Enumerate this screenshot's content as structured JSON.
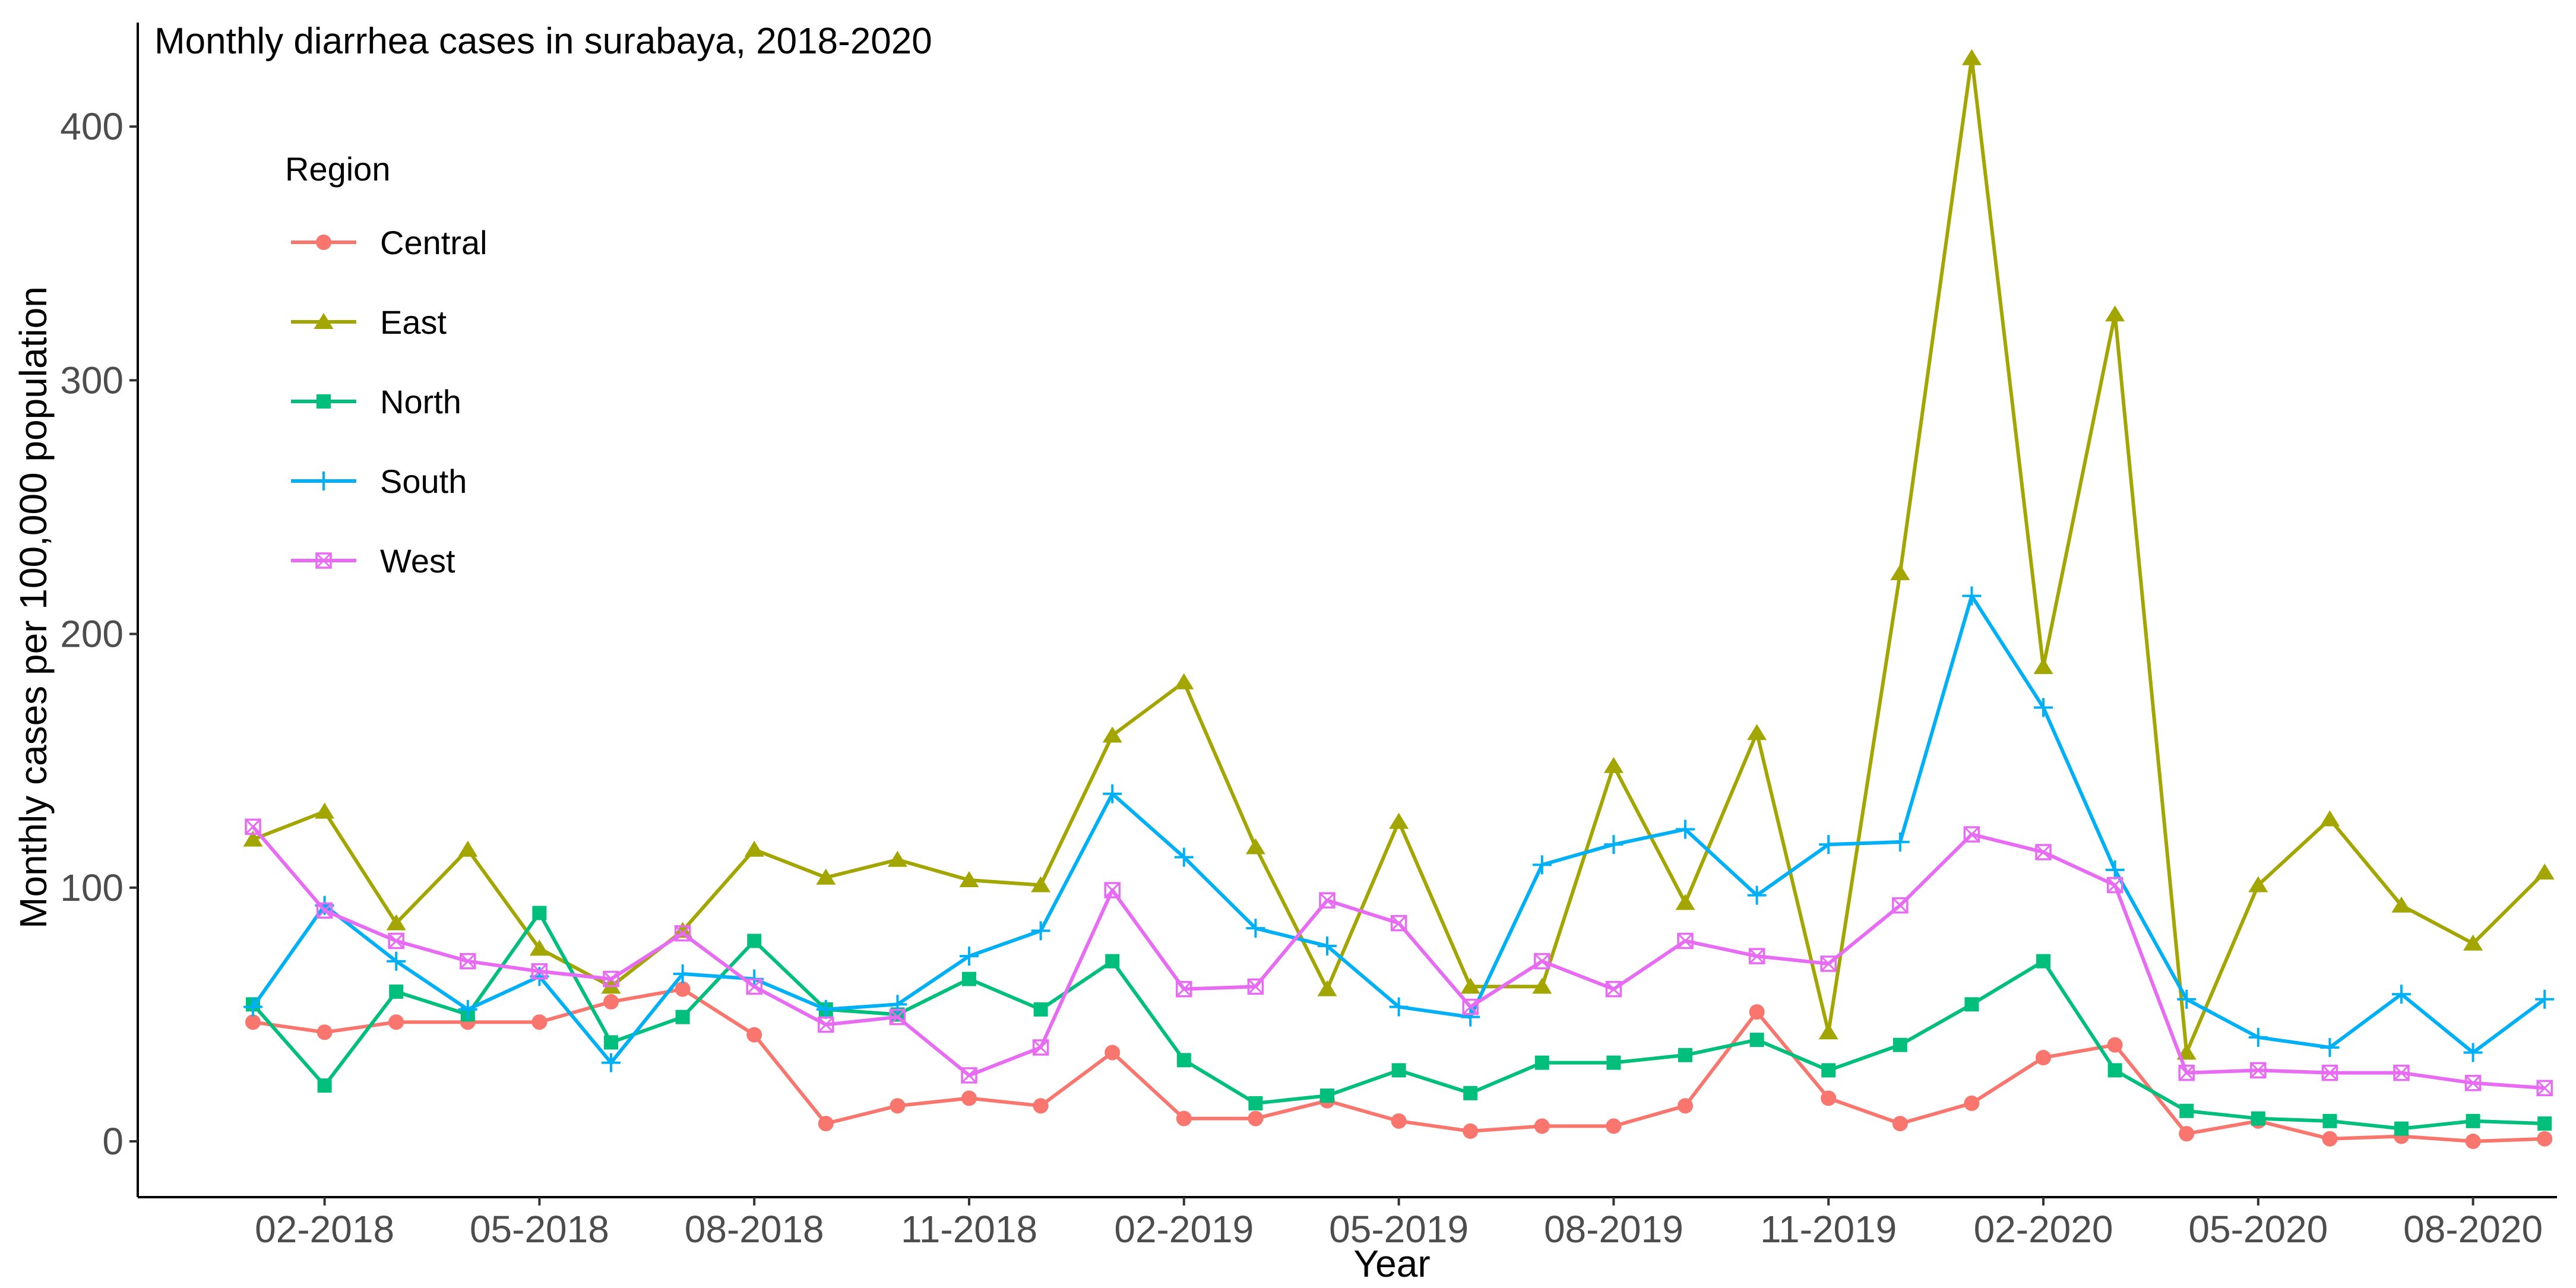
{
  "chart_data": {
    "type": "line",
    "title": "Monthly diarrhea cases in surabaya, 2018-2020",
    "xlabel": "Year",
    "ylabel": "Monthly cases per 100,000 population",
    "x": [
      "01-2018",
      "02-2018",
      "03-2018",
      "04-2018",
      "05-2018",
      "06-2018",
      "07-2018",
      "08-2018",
      "09-2018",
      "10-2018",
      "11-2018",
      "12-2018",
      "01-2019",
      "02-2019",
      "03-2019",
      "04-2019",
      "05-2019",
      "06-2019",
      "07-2019",
      "08-2019",
      "09-2019",
      "10-2019",
      "11-2019",
      "12-2019",
      "01-2020",
      "02-2020",
      "03-2020",
      "04-2020",
      "05-2020",
      "06-2020",
      "07-2020",
      "08-2020",
      "09-2020"
    ],
    "x_tick_labels": [
      "02-2018",
      "05-2018",
      "08-2018",
      "11-2018",
      "02-2019",
      "05-2019",
      "08-2019",
      "11-2019",
      "02-2020",
      "05-2020",
      "08-2020"
    ],
    "x_tick_positions": [
      "02-2018",
      "05-2018",
      "08-2018",
      "11-2018",
      "02-2019",
      "05-2019",
      "08-2019",
      "11-2019",
      "02-2020",
      "05-2020",
      "08-2020"
    ],
    "y_ticks": [
      0,
      100,
      200,
      300,
      400
    ],
    "ylim": [
      -22,
      441
    ],
    "grid": false,
    "legend_title": "Region",
    "legend_position": "top-left",
    "series": [
      {
        "name": "Central",
        "color": "#F8766D",
        "marker": "circle",
        "values": [
          47,
          43,
          47,
          47,
          47,
          55,
          60,
          42,
          7,
          14,
          17,
          14,
          35,
          9,
          9,
          16,
          8,
          4,
          6,
          6,
          14,
          51,
          17,
          7,
          15,
          33,
          38,
          3,
          8,
          1,
          2,
          0,
          1
        ]
      },
      {
        "name": "East",
        "color": "#A3A500",
        "marker": "triangle",
        "values": [
          119,
          130,
          86,
          115,
          76,
          61,
          83,
          115,
          104,
          111,
          103,
          101,
          160,
          181,
          116,
          60,
          126,
          61,
          61,
          148,
          94,
          161,
          43,
          224,
          427,
          187,
          326,
          35,
          101,
          127,
          93,
          78,
          106
        ]
      },
      {
        "name": "North",
        "color": "#00BF7D",
        "marker": "square",
        "values": [
          54,
          22,
          59,
          50,
          90,
          39,
          49,
          79,
          52,
          50,
          64,
          52,
          71,
          32,
          15,
          18,
          28,
          19,
          31,
          31,
          34,
          40,
          28,
          38,
          54,
          71,
          28,
          12,
          9,
          8,
          5,
          8,
          7
        ]
      },
      {
        "name": "South",
        "color": "#00B0F6",
        "marker": "plus",
        "values": [
          53,
          93,
          71,
          52,
          65,
          31,
          66,
          64,
          52,
          54,
          73,
          83,
          137,
          112,
          84,
          77,
          53,
          49,
          109,
          117,
          123,
          97,
          117,
          118,
          215,
          171,
          107,
          56,
          41,
          37,
          58,
          35,
          56
        ]
      },
      {
        "name": "West",
        "color": "#E76BF3",
        "marker": "boxed-x",
        "values": [
          124,
          91,
          79,
          71,
          67,
          64,
          82,
          61,
          46,
          49,
          26,
          37,
          99,
          60,
          61,
          95,
          86,
          53,
          71,
          60,
          79,
          73,
          70,
          93,
          121,
          114,
          101,
          27,
          28,
          27,
          27,
          23,
          21
        ]
      }
    ]
  }
}
